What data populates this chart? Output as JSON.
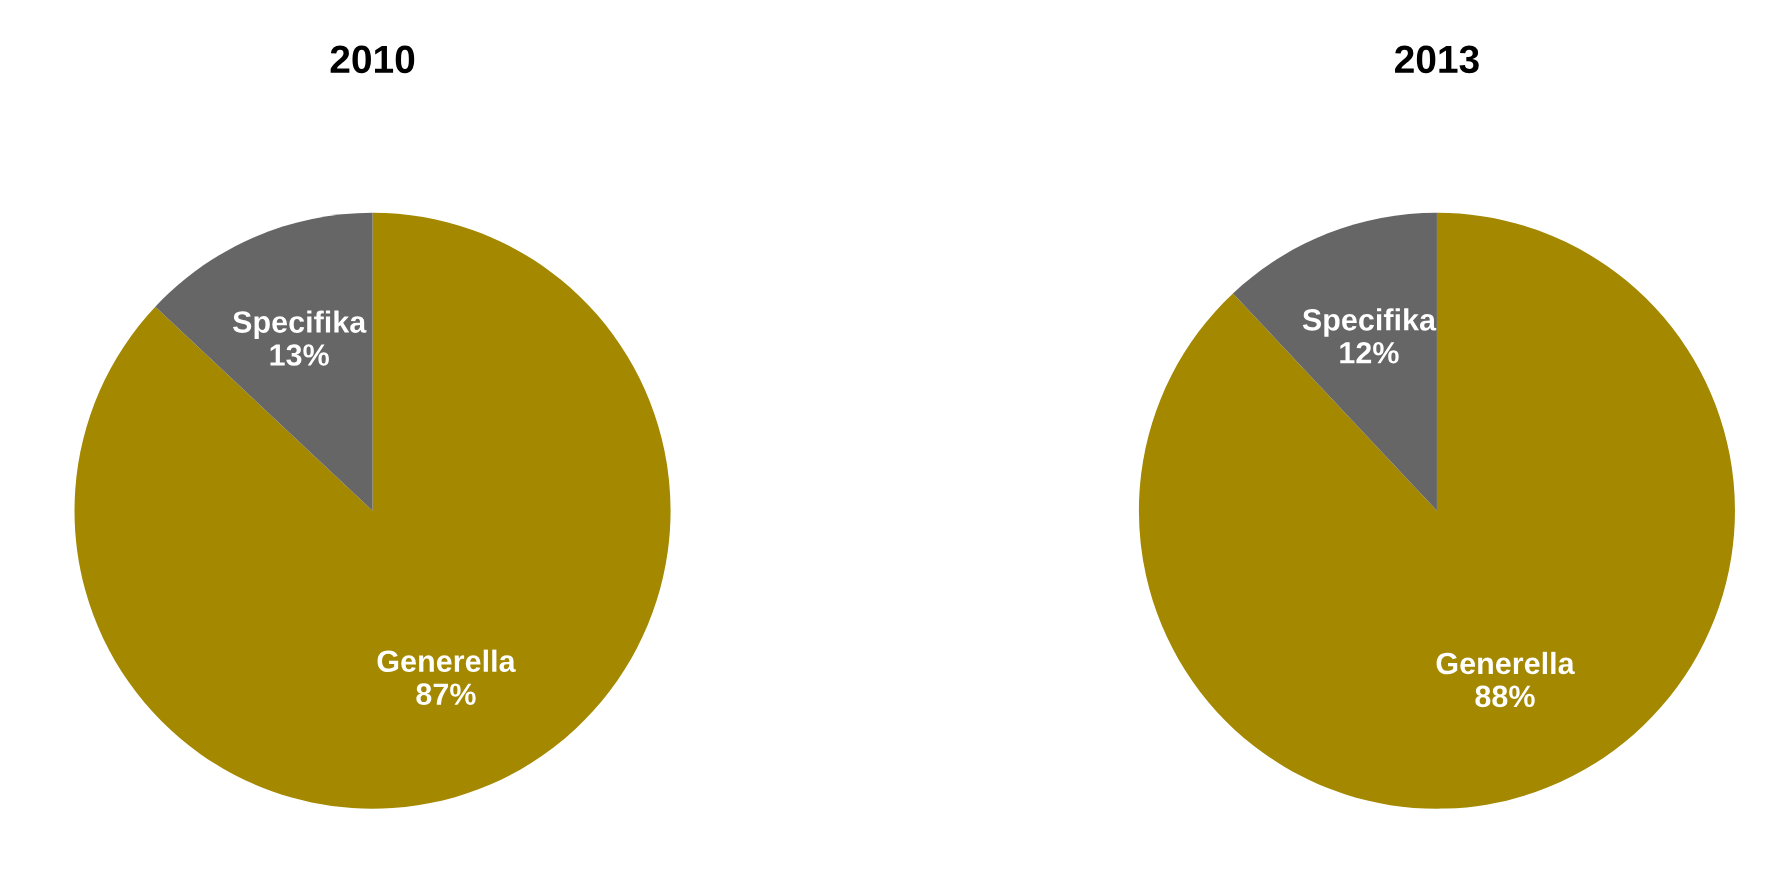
{
  "chart_data": [
    {
      "type": "pie",
      "title": "2010",
      "categories": [
        "Generella",
        "Specifika"
      ],
      "values": [
        87,
        13
      ],
      "colors": [
        "#a38800",
        "#666666"
      ],
      "value_labels": [
        "87%",
        "13%"
      ]
    },
    {
      "type": "pie",
      "title": "2013",
      "categories": [
        "Generella",
        "Specifika"
      ],
      "values": [
        88,
        12
      ],
      "colors": [
        "#a38800",
        "#666666"
      ],
      "value_labels": [
        "88%",
        "12%"
      ]
    }
  ]
}
